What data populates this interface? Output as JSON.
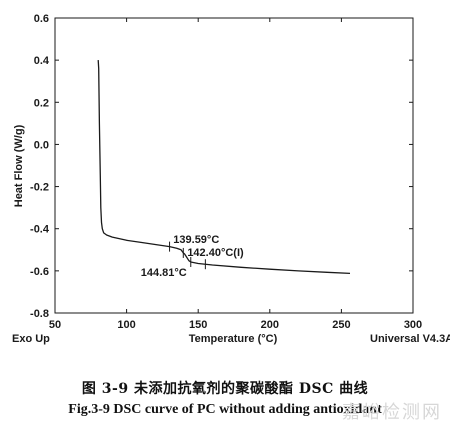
{
  "chart_data": {
    "type": "line",
    "xlabel": "Temperature (°C)",
    "ylabel": "Heat Flow (W/g)",
    "xlim": [
      50,
      300
    ],
    "ylim": [
      -0.8,
      0.6
    ],
    "x_ticks": [
      50,
      100,
      150,
      200,
      250,
      300
    ],
    "y_ticks": [
      0.6,
      0.4,
      0.2,
      0.0,
      -0.2,
      -0.4,
      -0.6,
      -0.8
    ],
    "x_tick_labels": [
      "50",
      "100",
      "150",
      "200",
      "250",
      "300"
    ],
    "y_tick_labels": [
      "0.6",
      "0.4",
      "0.2",
      "0.0",
      "-0.2",
      "-0.4",
      "-0.6",
      "-0.8"
    ],
    "corner_left": "Exo Up",
    "corner_right": "Universal V4.3A",
    "grid": false,
    "series": [
      {
        "x": [
          80.2,
          80.5,
          81.0,
          81.6,
          82.0,
          82.5,
          83.0,
          84.0,
          86.0,
          90,
          100,
          110,
          120,
          130,
          135,
          138,
          139.6,
          140.5,
          141.5,
          142.4,
          143.5,
          144.8,
          150,
          160,
          180,
          200,
          220,
          240,
          256
        ],
        "y": [
          0.4,
          0.36,
          0.1,
          -0.15,
          -0.3,
          -0.37,
          -0.4,
          -0.42,
          -0.43,
          -0.44,
          -0.455,
          -0.465,
          -0.475,
          -0.485,
          -0.493,
          -0.5,
          -0.515,
          -0.52,
          -0.53,
          -0.54,
          -0.552,
          -0.558,
          -0.565,
          -0.572,
          -0.583,
          -0.592,
          -0.6,
          -0.607,
          -0.612
        ]
      }
    ],
    "annotations": [
      {
        "text": "139.59°C",
        "x": 139.59,
        "y": -0.515
      },
      {
        "text": "142.40°C(I)",
        "x": 142.4,
        "y": -0.54
      },
      {
        "text": "144.81°C",
        "x": 144.81,
        "y": -0.558
      }
    ],
    "markers_x": [
      130,
      139.59,
      144.81,
      155
    ]
  },
  "caption_cn": "图 3-9 未添加抗氧剂的聚碳酸酯 DSC 曲线",
  "caption_en": "Fig.3-9 DSC curve of PC without adding antioxidant",
  "watermark": "嘉峪检测网"
}
